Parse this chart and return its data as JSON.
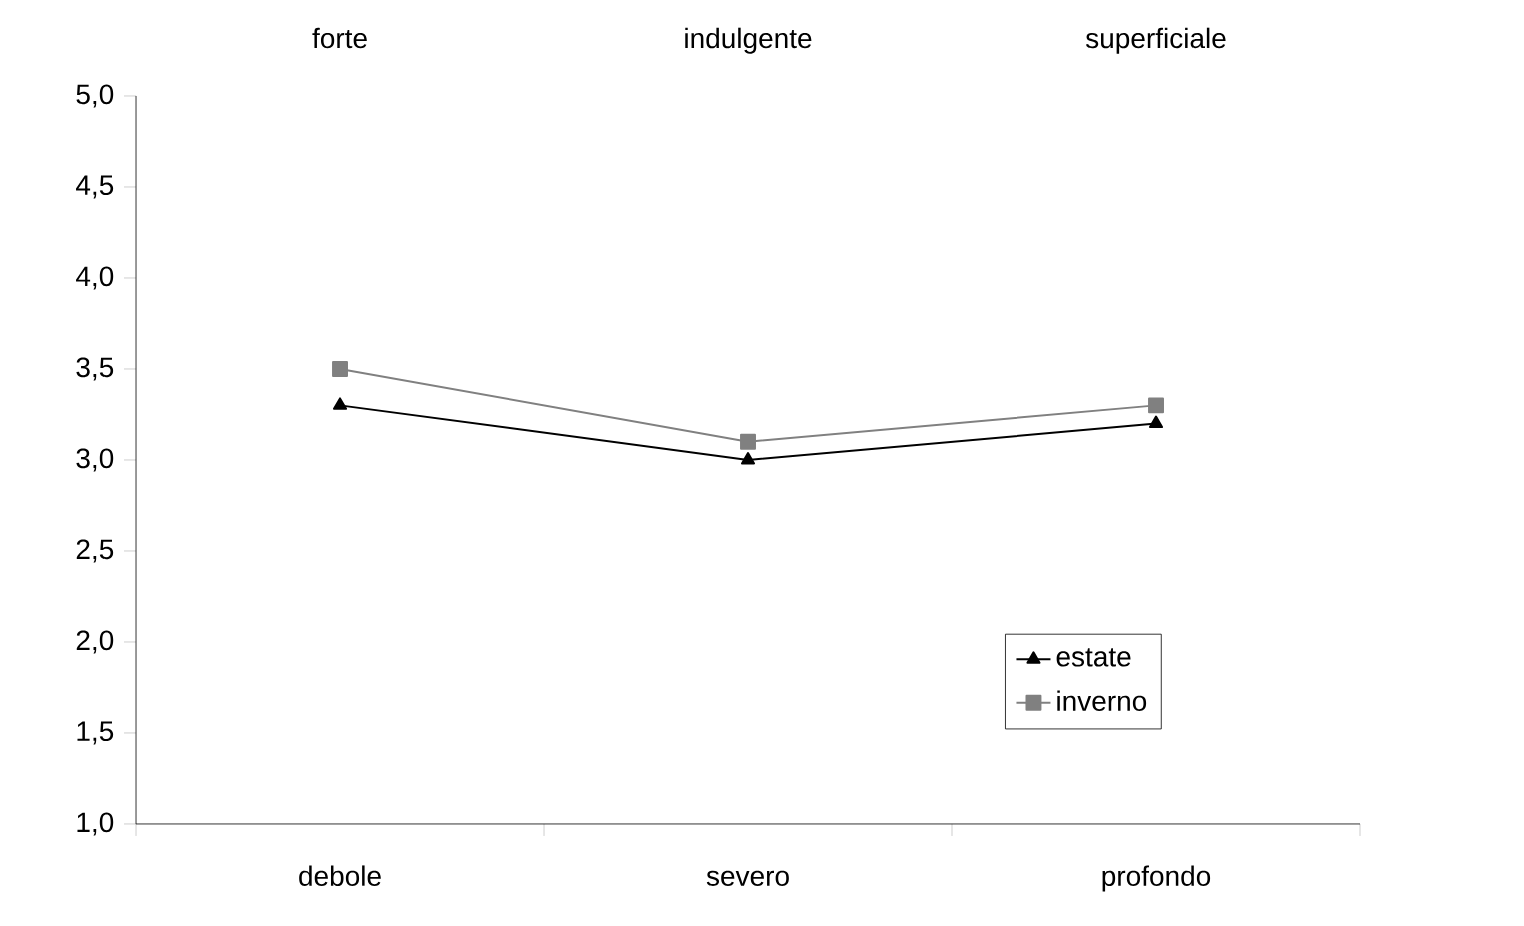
{
  "chart_data": {
    "type": "line",
    "categories": [
      "debole",
      "severo",
      "profondo"
    ],
    "annotations": [
      "forte",
      "indulgente",
      "superficiale"
    ],
    "series": [
      {
        "name": "estate",
        "color": "#000000",
        "marker": "triangle",
        "values": [
          3.3,
          3.0,
          3.2
        ]
      },
      {
        "name": "inverno",
        "color": "#808080",
        "marker": "square",
        "values": [
          3.5,
          3.1,
          3.3
        ]
      }
    ],
    "ylim": [
      1.0,
      5.0
    ],
    "yticks": [
      {
        "value": 1.0,
        "label": "1,0"
      },
      {
        "value": 1.5,
        "label": "1,5"
      },
      {
        "value": 2.0,
        "label": "2,0"
      },
      {
        "value": 2.5,
        "label": "2,5"
      },
      {
        "value": 3.0,
        "label": "3,0"
      },
      {
        "value": 3.5,
        "label": "3,5"
      },
      {
        "value": 4.0,
        "label": "4,0"
      },
      {
        "value": 4.5,
        "label": "4,5"
      },
      {
        "value": 5.0,
        "label": "5,0"
      }
    ],
    "legend": "bottom right",
    "grid": false
  }
}
